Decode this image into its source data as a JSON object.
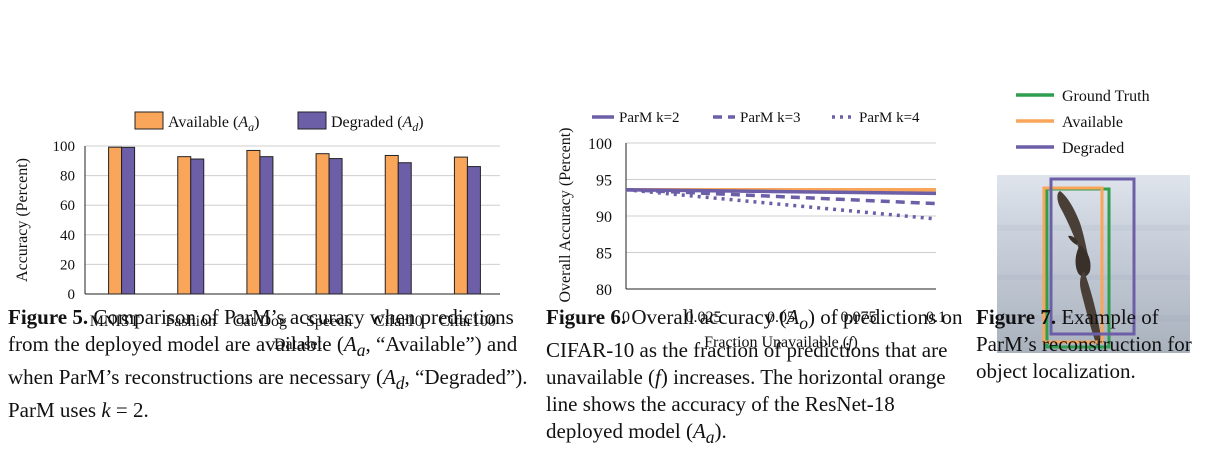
{
  "chart_data": [
    {
      "type": "bar",
      "xlabel": "Dataset",
      "ylabel": "Accuracy (Percent)",
      "ylim": [
        0,
        100
      ],
      "yticks": [
        "0",
        "20",
        "40",
        "60",
        "80",
        "100"
      ],
      "categories": [
        "MNIST",
        "Fashion",
        "Cat/Dog",
        "Speech",
        "Cifar10",
        "Cifar100"
      ],
      "legend_position": "top",
      "grid": true,
      "series": [
        {
          "name": "Available",
          "legend_sym": "A",
          "legend_sub": "a",
          "color": "#F9A65A",
          "values": [
            99.2,
            92.8,
            97.0,
            94.8,
            93.6,
            92.5
          ]
        },
        {
          "name": "Degraded",
          "legend_sym": "A",
          "legend_sub": "d",
          "color": "#6D5EA8",
          "values": [
            99.1,
            91.2,
            92.8,
            91.5,
            88.7,
            86.1
          ]
        }
      ]
    },
    {
      "type": "line",
      "xlabel": "Fraction Unavailable",
      "xlabel_sym": "f",
      "ylabel": "Overall Accuracy (Percent)",
      "xlim": [
        0,
        0.1
      ],
      "ylim": [
        80,
        100
      ],
      "xticks": [
        "0",
        "0.025",
        "0.05",
        "0.075",
        "0.1"
      ],
      "yticks": [
        "80",
        "85",
        "90",
        "95",
        "100"
      ],
      "grid": true,
      "legend_position": "top",
      "x": [
        0,
        0.1
      ],
      "series": [
        {
          "name": "ParM k=2",
          "style": "solid",
          "color": "#6D5EA8",
          "values": [
            93.6,
            93.1
          ]
        },
        {
          "name": "ParM k=3",
          "style": "dashed",
          "color": "#6D5EA8",
          "values": [
            93.6,
            91.7
          ]
        },
        {
          "name": "ParM k=4",
          "style": "dotted",
          "color": "#6D5EA8",
          "values": [
            93.6,
            89.6
          ]
        }
      ],
      "reference_line": {
        "color": "#F9A65A",
        "value": 93.6
      }
    }
  ],
  "figure7": {
    "legend": [
      {
        "label": "Ground Truth",
        "color": "#2E9E4F"
      },
      {
        "label": "Available",
        "color": "#F9A65A"
      },
      {
        "label": "Degraded",
        "color": "#6D5EA8"
      }
    ]
  },
  "captions": {
    "fig5": {
      "label": "Figure 5.",
      "t1": " Comparison of ParM’s accuracy when predictions from the deployed model are available (",
      "t2": ", “Available”) and when ParM’s reconstructions are necessary (",
      "t3": ", “Degraded”). ParM uses ",
      "t4": " = 2."
    },
    "fig6": {
      "label": "Figure 6.",
      "t1": " Overall accuracy (",
      "t2": ") of predictions on CIFAR-10 as the fraction of predictions that are unavailable (",
      "t3": ") increases. The horizontal orange line shows the accuracy of the ResNet-18 deployed model (",
      "t4": ")."
    },
    "fig7": {
      "label": "Figure 7.",
      "text": " Example of ParM’s reconstruction for object localization."
    },
    "sym": {
      "A": "A",
      "a": "a",
      "d": "d",
      "o": "o",
      "k": "k",
      "f": "f"
    }
  }
}
